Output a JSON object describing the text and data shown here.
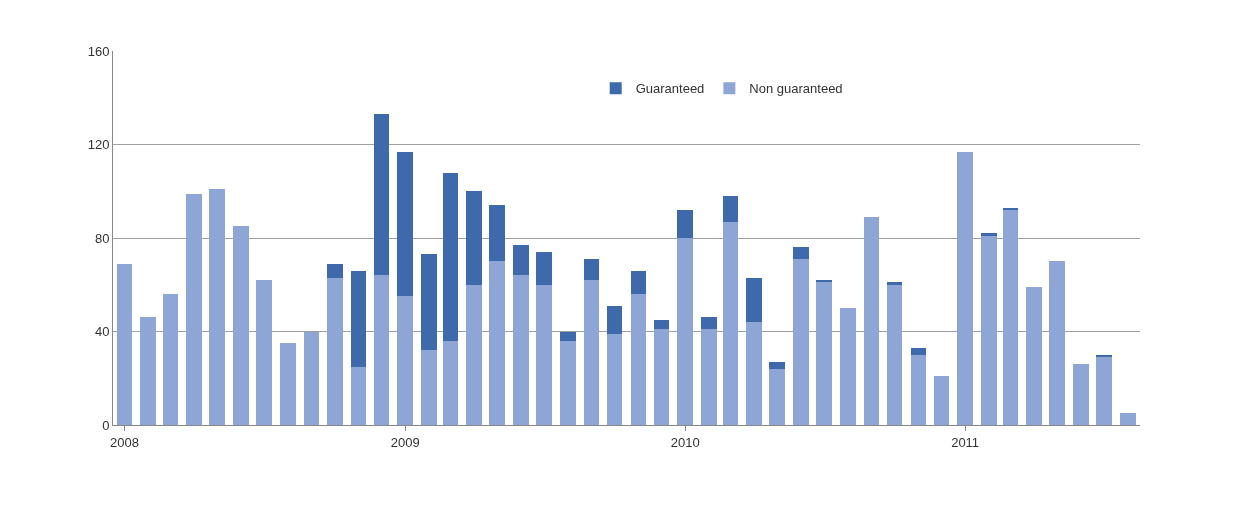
{
  "chart_data": {
    "type": "bar",
    "stacked": true,
    "x": [
      "2008-01",
      "2008-02",
      "2008-03",
      "2008-04",
      "2008-05",
      "2008-06",
      "2008-07",
      "2008-08",
      "2008-09",
      "2008-10",
      "2008-11",
      "2008-12",
      "2009-01",
      "2009-02",
      "2009-03",
      "2009-04",
      "2009-05",
      "2009-06",
      "2009-07",
      "2009-08",
      "2009-09",
      "2009-10",
      "2009-11",
      "2009-12",
      "2010-01",
      "2010-02",
      "2010-03",
      "2010-04",
      "2010-05",
      "2010-06",
      "2010-07",
      "2010-08",
      "2010-09",
      "2010-10",
      "2010-11",
      "2010-12",
      "2011-01",
      "2011-02",
      "2011-03",
      "2011-04",
      "2011-05",
      "2011-06",
      "2011-07",
      "2011-08"
    ],
    "series": [
      {
        "name": "Non guaranteed",
        "color": "#8da6d6",
        "values": [
          69,
          46,
          56,
          99,
          101,
          85,
          62,
          35,
          40,
          63,
          25,
          64,
          55,
          32,
          36,
          60,
          70,
          64,
          60,
          36,
          62,
          39,
          56,
          41,
          80,
          41,
          87,
          44,
          24,
          71,
          61,
          50,
          89,
          60,
          30,
          21,
          117,
          81,
          92,
          59,
          70,
          26,
          29,
          5
        ]
      },
      {
        "name": "Guaranteed",
        "color": "#3e6aab",
        "values": [
          0,
          0,
          0,
          0,
          0,
          0,
          0,
          0,
          0,
          6,
          41,
          69,
          62,
          41,
          72,
          40,
          24,
          13,
          14,
          4,
          9,
          12,
          10,
          4,
          12,
          5,
          11,
          19,
          3,
          5,
          1,
          0,
          0,
          1,
          3,
          0,
          0,
          1,
          1,
          0,
          0,
          0,
          1,
          0
        ]
      }
    ],
    "xlim": [
      "2007-12-17",
      "2011-08-17"
    ],
    "xticks": [
      "2008",
      "2009",
      "2010",
      "2011"
    ],
    "ylim": [
      0,
      160
    ],
    "yticks": [
      0,
      40,
      80,
      120,
      160
    ],
    "grid": "y",
    "legend": "top"
  }
}
